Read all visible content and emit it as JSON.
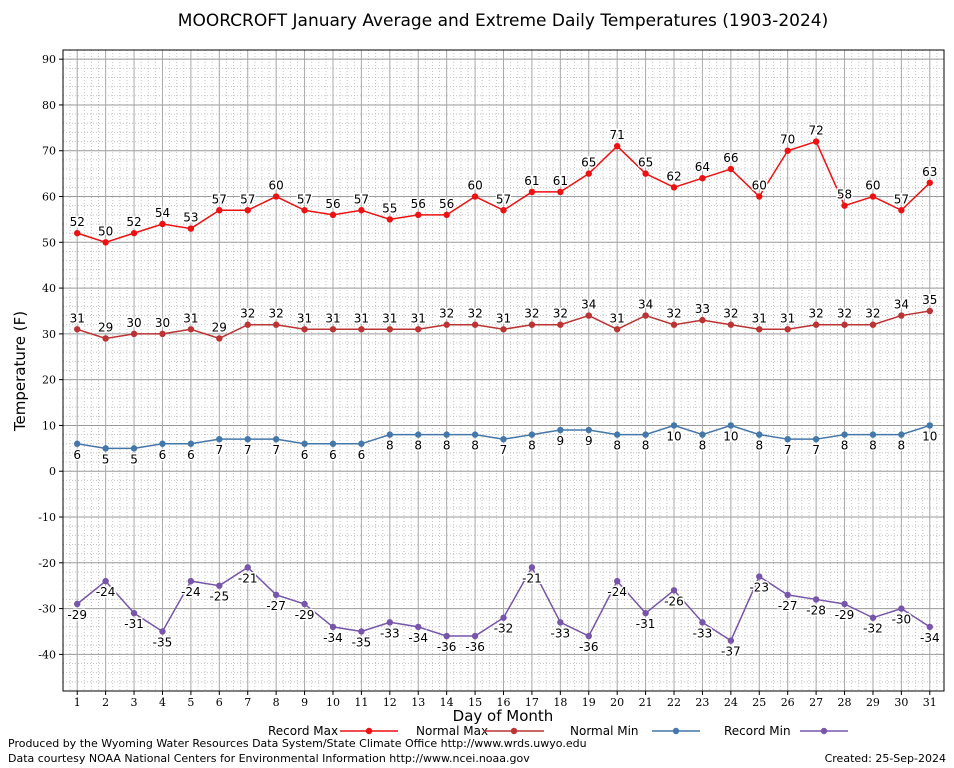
{
  "chart_data": {
    "type": "line",
    "title": "MOORCROFT January Average and Extreme Daily Temperatures (1903-2024)",
    "xlabel": "Day of Month",
    "ylabel": "Temperature (F)",
    "ylim": [
      -48,
      92
    ],
    "yticks": [
      -40,
      -30,
      -20,
      -10,
      0,
      10,
      20,
      30,
      40,
      50,
      60,
      70,
      80,
      90
    ],
    "x": [
      1,
      2,
      3,
      4,
      5,
      6,
      7,
      8,
      9,
      10,
      11,
      12,
      13,
      14,
      15,
      16,
      17,
      18,
      19,
      20,
      21,
      22,
      23,
      24,
      25,
      26,
      27,
      28,
      29,
      30,
      31
    ],
    "grid": true,
    "legend_position": "bottom",
    "series": [
      {
        "name": "Record Max",
        "color": "#ee1111",
        "label_position": "above",
        "values": [
          52,
          50,
          52,
          54,
          53,
          57,
          57,
          60,
          57,
          56,
          57,
          55,
          56,
          56,
          60,
          57,
          61,
          61,
          65,
          71,
          65,
          62,
          64,
          66,
          60,
          70,
          72,
          58,
          60,
          57,
          63
        ]
      },
      {
        "name": "Normal Max",
        "color": "#bb3333",
        "label_position": "above",
        "values": [
          31,
          29,
          30,
          30,
          31,
          29,
          32,
          32,
          31,
          31,
          31,
          31,
          31,
          32,
          32,
          31,
          32,
          32,
          34,
          31,
          34,
          32,
          33,
          32,
          31,
          31,
          32,
          32,
          32,
          34,
          35
        ]
      },
      {
        "name": "Normal Min",
        "color": "#4477aa",
        "label_position": "below",
        "values": [
          6,
          5,
          5,
          6,
          6,
          7,
          7,
          7,
          6,
          6,
          6,
          8,
          8,
          8,
          8,
          7,
          8,
          9,
          9,
          8,
          8,
          10,
          8,
          10,
          8,
          7,
          7,
          8,
          8,
          8,
          10
        ]
      },
      {
        "name": "Record Min",
        "color": "#7755aa",
        "label_position": "below",
        "values": [
          -29,
          -24,
          -31,
          -35,
          -24,
          -25,
          -21,
          -27,
          -29,
          -34,
          -35,
          -33,
          -34,
          -36,
          -36,
          -32,
          -21,
          -33,
          -36,
          -24,
          -31,
          -26,
          -33,
          -37,
          -23,
          -27,
          -28,
          -29,
          -32,
          -30,
          -34
        ]
      }
    ]
  },
  "footer": {
    "produced_by": "Produced by the Wyoming Water Resources Data System/State Climate Office http://www.wrds.uwyo.edu",
    "courtesy": "Data courtesy NOAA National Centers for Environmental Information http://www.ncei.noaa.gov",
    "created": "Created: 25-Sep-2024"
  }
}
